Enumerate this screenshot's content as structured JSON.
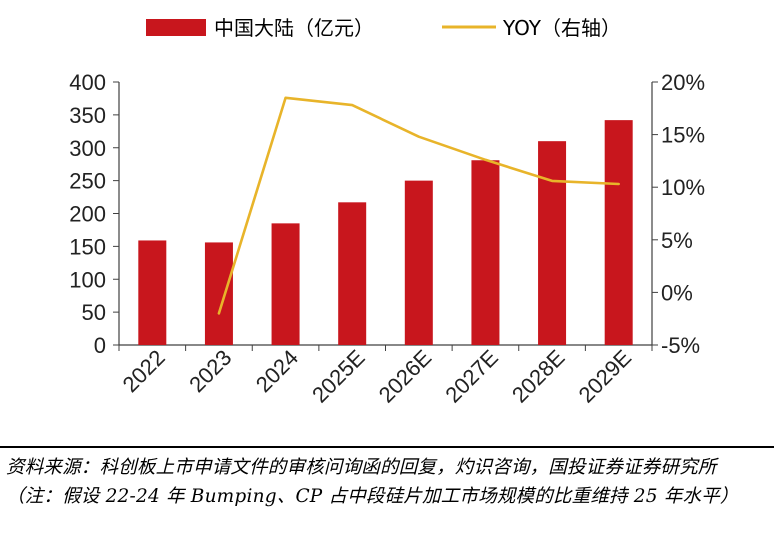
{
  "chart_data": {
    "type": "bar+line",
    "categories": [
      "2022",
      "2023",
      "2024",
      "2025E",
      "2026E",
      "2027E",
      "2028E",
      "2029E"
    ],
    "series": [
      {
        "name": "中国大陆（亿元）",
        "type": "bar",
        "axis": "left",
        "values": [
          159,
          156,
          185,
          217,
          250,
          281,
          310,
          342
        ]
      },
      {
        "name": "YOY（右轴）",
        "type": "line",
        "axis": "right",
        "values": [
          null,
          -2.0,
          18.5,
          17.8,
          14.8,
          12.6,
          10.6,
          10.3
        ]
      }
    ],
    "left_axis": {
      "ylim": [
        0,
        400
      ],
      "ticks": [
        "0",
        "50",
        "100",
        "150",
        "200",
        "250",
        "300",
        "350",
        "400"
      ]
    },
    "right_axis": {
      "ylim": [
        -5,
        20
      ],
      "ticks": [
        "-5%",
        "0%",
        "5%",
        "10%",
        "15%",
        "20%"
      ]
    },
    "legend_position": "top",
    "grid": false,
    "colors": {
      "bar": "#C8161D",
      "line": "#E8B42A",
      "axis": "#404040"
    }
  },
  "source_note": "资料来源：科创板上市申请文件的审核问询函的回复，灼识咨询，国投证券证券研究所（注：假设 22-24 年 Bumping、CP 占中段硅片加工市场规模的比重维持 25 年水平）"
}
